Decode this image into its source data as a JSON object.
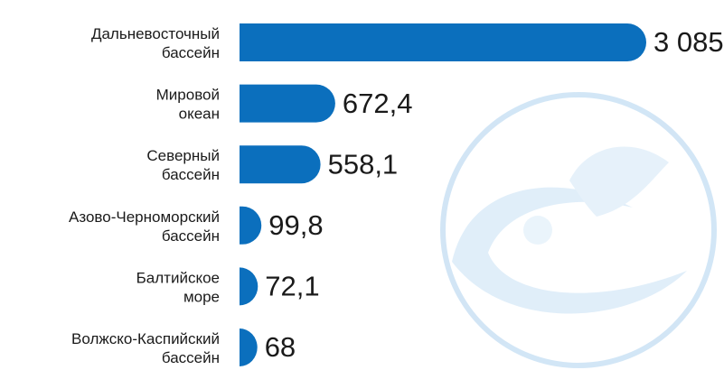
{
  "chart_data": {
    "type": "bar",
    "orientation": "horizontal",
    "categories": [
      [
        "Дальневосточный",
        "бассейн"
      ],
      [
        "Мировой",
        "океан"
      ],
      [
        "Северный",
        "бассейн"
      ],
      [
        "Азово-Черноморский",
        "бассейн"
      ],
      [
        "Балтийское",
        "море"
      ],
      [
        "Волжско-Каспийский",
        "бассейн"
      ]
    ],
    "values": [
      3085,
      672.4,
      558.1,
      99.8,
      72.1,
      68
    ],
    "value_labels": [
      "3 085",
      "672,4",
      "558,1",
      "99,8",
      "72,1",
      "68"
    ],
    "color": "#0b6fbd"
  }
}
